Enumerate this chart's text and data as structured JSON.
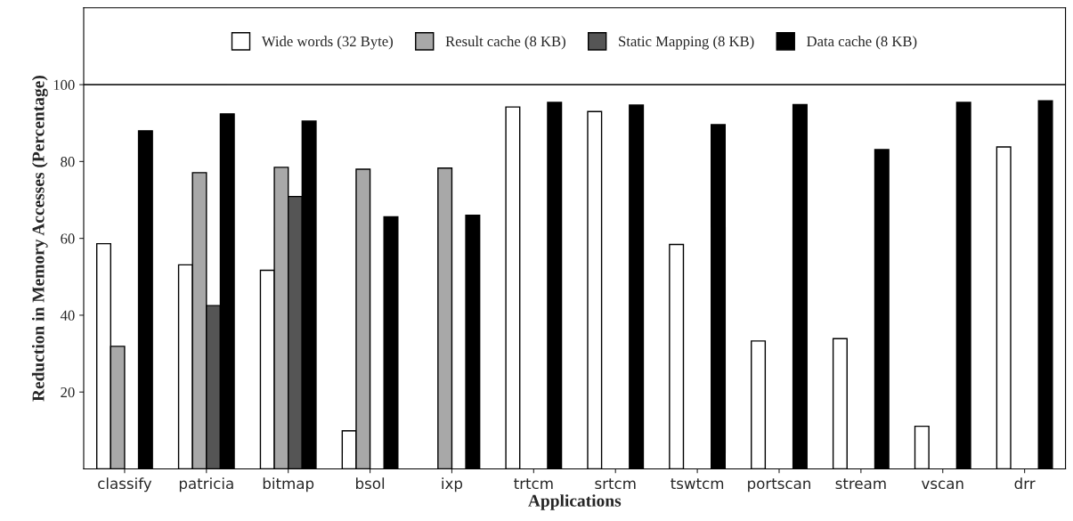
{
  "chart_data": {
    "type": "bar",
    "xlabel": "Applications",
    "ylabel": "Reduction in Memory Accesses (Percentage)",
    "categories": [
      "classify",
      "patricia",
      "bitmap",
      "bsol",
      "ixp",
      "trtcm",
      "srtcm",
      "tswtcm",
      "portscan",
      "stream",
      "vscan",
      "drr"
    ],
    "series": [
      {
        "name": "Wide words (32 Byte)",
        "color": "#ffffff",
        "values": [
          58.6,
          53.1,
          51.7,
          9.9,
          null,
          94.2,
          93.0,
          58.4,
          33.3,
          33.9,
          11.1,
          83.8
        ]
      },
      {
        "name": "Result cache (8 KB)",
        "color": "#a8a8a8",
        "values": [
          31.9,
          77.1,
          78.5,
          78.0,
          78.3,
          null,
          null,
          null,
          null,
          null,
          null,
          null
        ]
      },
      {
        "name": "Static Mapping (8 KB)",
        "color": "#555555",
        "values": [
          null,
          42.5,
          70.9,
          null,
          null,
          null,
          null,
          null,
          null,
          null,
          null,
          null
        ]
      },
      {
        "name": "Data cache (8 KB)",
        "color": "#000000",
        "values": [
          88.0,
          92.4,
          90.5,
          65.6,
          66.0,
          95.4,
          94.7,
          89.6,
          94.8,
          83.1,
          95.4,
          95.8
        ]
      }
    ],
    "ylim": [
      0,
      120
    ],
    "yticks": [
      20,
      40,
      60,
      80,
      100
    ],
    "ref_lines": [
      {
        "axis": "y",
        "value": 100,
        "color": "#000000"
      }
    ],
    "grid": false,
    "legend": "top"
  }
}
